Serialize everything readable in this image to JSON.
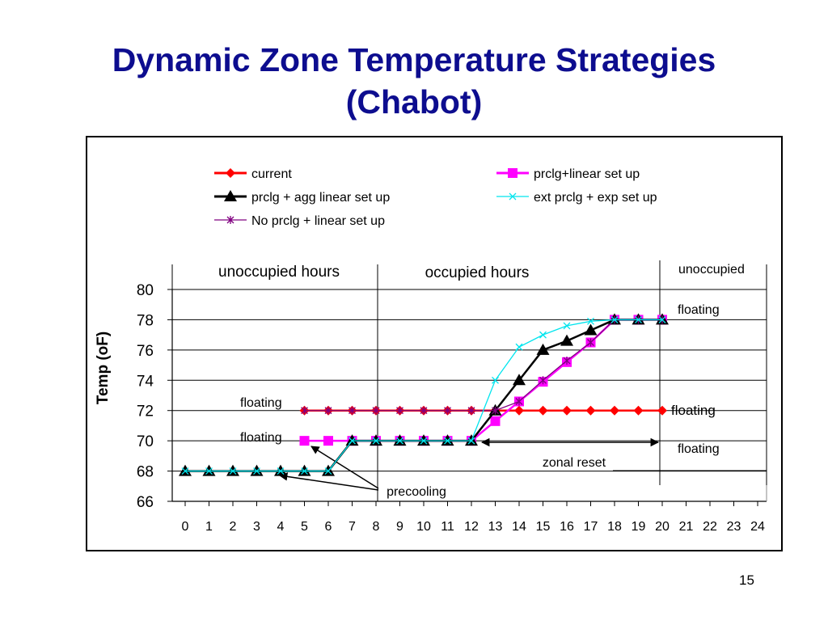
{
  "slide": {
    "title_line1": "Dynamic Zone Temperature Strategies",
    "title_line2": "(Chabot)",
    "page_number": "15"
  },
  "chart_data": {
    "type": "line",
    "ylabel": "Temp (oF)",
    "xlabel": "",
    "ylim": [
      66,
      80
    ],
    "yticks": [
      66,
      68,
      70,
      72,
      74,
      76,
      78,
      80
    ],
    "xlim": [
      0,
      24
    ],
    "xticks": [
      0,
      1,
      2,
      3,
      4,
      5,
      6,
      7,
      8,
      9,
      10,
      11,
      12,
      13,
      14,
      15,
      16,
      17,
      18,
      19,
      20,
      21,
      22,
      23,
      24
    ],
    "grid": "horizontal",
    "legend_position": "top",
    "series": [
      {
        "name": "current",
        "color": "#ff0000",
        "marker": "diamond",
        "x": [
          5,
          6,
          7,
          8,
          9,
          10,
          11,
          12,
          13,
          14,
          15,
          16,
          17,
          18,
          19,
          20
        ],
        "y": [
          72,
          72,
          72,
          72,
          72,
          72,
          72,
          72,
          72,
          72,
          72,
          72,
          72,
          72,
          72,
          72
        ]
      },
      {
        "name": "prclg+linear set up",
        "color": "#ff00ff",
        "marker": "square",
        "x": [
          5,
          6,
          7,
          8,
          9,
          10,
          11,
          12,
          13,
          14,
          15,
          16,
          17,
          18,
          19,
          20
        ],
        "y": [
          70,
          70,
          70,
          70,
          70,
          70,
          70,
          70,
          71.3,
          72.6,
          73.9,
          75.2,
          76.5,
          78,
          78,
          78
        ]
      },
      {
        "name": "prclg + agg linear set up",
        "color": "#000000",
        "marker": "triangle",
        "x": [
          0,
          1,
          2,
          3,
          4,
          5,
          6,
          7,
          8,
          9,
          10,
          11,
          12,
          13,
          14,
          15,
          16,
          17,
          18,
          19,
          20
        ],
        "y": [
          68,
          68,
          68,
          68,
          68,
          68,
          68,
          70,
          70,
          70,
          70,
          70,
          70,
          72,
          74,
          76,
          76.6,
          77.3,
          78,
          78,
          78
        ]
      },
      {
        "name": "ext prclg + exp set up",
        "color": "#00e5ee",
        "marker": "x",
        "x": [
          0,
          1,
          2,
          3,
          4,
          5,
          6,
          7,
          8,
          9,
          10,
          11,
          12,
          13,
          14,
          15,
          16,
          17,
          18,
          19,
          20
        ],
        "y": [
          68,
          68,
          68,
          68,
          68,
          68,
          68,
          70,
          70,
          70,
          70,
          70,
          70,
          74,
          76.2,
          77,
          77.6,
          77.9,
          78,
          78,
          78
        ]
      },
      {
        "name": "No prclg + linear set up",
        "color": "#800080",
        "marker": "star",
        "x": [
          5,
          6,
          7,
          8,
          9,
          10,
          11,
          12,
          13,
          14,
          15,
          16,
          17,
          18,
          19,
          20
        ],
        "y": [
          72,
          72,
          72,
          72,
          72,
          72,
          72,
          72,
          72,
          72.6,
          74,
          75.3,
          76.5,
          78,
          78,
          78
        ]
      }
    ],
    "annotations": {
      "unoccupied_hours": "unoccupied hours",
      "occupied_hours": "occupied hours",
      "unoccupied": "unoccupied",
      "floating_right_top": "floating",
      "floating_left_72": "floating",
      "floating_right_72": "floating",
      "floating_left_70": "floating",
      "floating_right_70": "floating",
      "zonal_reset": "zonal reset",
      "precooling": "precooling"
    }
  }
}
